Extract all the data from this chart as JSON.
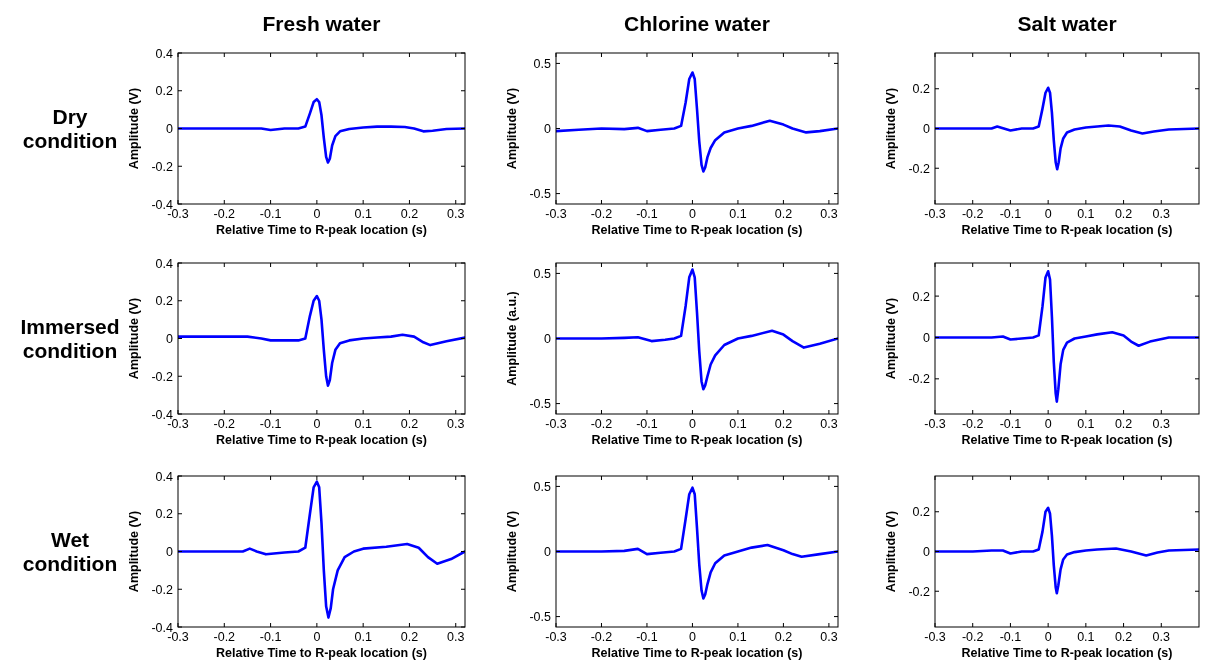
{
  "chart_data": [
    {
      "type": "line",
      "title": "Fresh water",
      "annotations": [
        "Dry condition"
      ],
      "xlabel": "Relative Time to R-peak location (s)",
      "ylabel": "Amplitude (V)",
      "xlim": [
        -0.3,
        0.32
      ],
      "xticks": [
        -0.3,
        -0.2,
        -0.1,
        0,
        0.1,
        0.2,
        0.3
      ],
      "ylim": [
        -0.4,
        0.4
      ],
      "yticks": [
        -0.4,
        -0.2,
        0,
        0.2,
        0.4
      ],
      "x": [
        -0.3,
        -0.25,
        -0.2,
        -0.15,
        -0.12,
        -0.1,
        -0.07,
        -0.04,
        -0.025,
        -0.015,
        -0.007,
        0,
        0.005,
        0.01,
        0.015,
        0.02,
        0.024,
        0.028,
        0.033,
        0.04,
        0.05,
        0.07,
        0.1,
        0.13,
        0.16,
        0.19,
        0.21,
        0.23,
        0.25,
        0.28,
        0.32
      ],
      "series": [
        {
          "color": "#0000ff",
          "values": [
            0,
            0,
            0,
            0,
            0,
            -0.008,
            0,
            0,
            0.01,
            0.08,
            0.14,
            0.155,
            0.14,
            0.07,
            -0.05,
            -0.15,
            -0.18,
            -0.16,
            -0.09,
            -0.04,
            -0.015,
            -0.003,
            0.005,
            0.01,
            0.01,
            0.008,
            0,
            -0.015,
            -0.012,
            -0.003,
            0
          ]
        }
      ]
    },
    {
      "type": "line",
      "title": "Chlorine water",
      "xlabel": "Relative Time to R-peak location (s)",
      "ylabel": "Amplitude (V)",
      "xlim": [
        -0.3,
        0.32
      ],
      "xticks": [
        -0.3,
        -0.2,
        -0.1,
        0,
        0.1,
        0.2,
        0.3
      ],
      "ylim": [
        -0.58,
        0.58
      ],
      "yticks": [
        -0.5,
        0,
        0.5
      ],
      "x": [
        -0.3,
        -0.25,
        -0.2,
        -0.15,
        -0.12,
        -0.1,
        -0.07,
        -0.04,
        -0.025,
        -0.015,
        -0.007,
        0,
        0.005,
        0.01,
        0.015,
        0.02,
        0.024,
        0.028,
        0.033,
        0.04,
        0.05,
        0.07,
        0.1,
        0.13,
        0.17,
        0.2,
        0.22,
        0.25,
        0.28,
        0.32
      ],
      "series": [
        {
          "color": "#0000ff",
          "values": [
            -0.02,
            -0.01,
            0,
            -0.005,
            0.005,
            -0.02,
            -0.01,
            0,
            0.02,
            0.2,
            0.38,
            0.43,
            0.38,
            0.15,
            -0.1,
            -0.28,
            -0.33,
            -0.3,
            -0.22,
            -0.15,
            -0.09,
            -0.03,
            0,
            0.02,
            0.06,
            0.03,
            0,
            -0.03,
            -0.02,
            0
          ]
        }
      ]
    },
    {
      "type": "line",
      "title": "Salt water",
      "xlabel": "Relative Time to R-peak location (s)",
      "ylabel": "Amplitude (V)",
      "xlim": [
        -0.3,
        0.4
      ],
      "xticks": [
        -0.3,
        -0.2,
        -0.1,
        0,
        0.1,
        0.2,
        0.3
      ],
      "ylim": [
        -0.38,
        0.38
      ],
      "yticks": [
        -0.2,
        0,
        0.2
      ],
      "x": [
        -0.3,
        -0.25,
        -0.2,
        -0.15,
        -0.135,
        -0.1,
        -0.07,
        -0.04,
        -0.025,
        -0.015,
        -0.007,
        0,
        0.005,
        0.01,
        0.015,
        0.02,
        0.024,
        0.028,
        0.033,
        0.04,
        0.05,
        0.07,
        0.1,
        0.13,
        0.16,
        0.19,
        0.22,
        0.25,
        0.28,
        0.32,
        0.4
      ],
      "series": [
        {
          "color": "#0000ff",
          "values": [
            0,
            0,
            0,
            0,
            0.01,
            -0.01,
            0,
            0,
            0.01,
            0.1,
            0.18,
            0.205,
            0.18,
            0.08,
            -0.06,
            -0.17,
            -0.205,
            -0.17,
            -0.1,
            -0.05,
            -0.02,
            -0.005,
            0.005,
            0.01,
            0.015,
            0.01,
            -0.01,
            -0.025,
            -0.015,
            -0.005,
            0
          ]
        }
      ]
    },
    {
      "type": "line",
      "annotations": [
        "Immersed condition"
      ],
      "xlabel": "Relative Time to R-peak location (s)",
      "ylabel": "Amplitude (V)",
      "xlim": [
        -0.3,
        0.32
      ],
      "xticks": [
        -0.3,
        -0.2,
        -0.1,
        0,
        0.1,
        0.2,
        0.3
      ],
      "ylim": [
        -0.4,
        0.4
      ],
      "yticks": [
        -0.4,
        -0.2,
        0,
        0.2,
        0.4
      ],
      "x": [
        -0.3,
        -0.25,
        -0.2,
        -0.15,
        -0.12,
        -0.1,
        -0.07,
        -0.04,
        -0.025,
        -0.015,
        -0.007,
        0,
        0.005,
        0.01,
        0.015,
        0.02,
        0.024,
        0.028,
        0.033,
        0.04,
        0.05,
        0.07,
        0.1,
        0.13,
        0.16,
        0.185,
        0.21,
        0.23,
        0.245,
        0.28,
        0.32
      ],
      "series": [
        {
          "color": "#0000ff",
          "values": [
            0.01,
            0.01,
            0.01,
            0.01,
            0,
            -0.01,
            -0.01,
            -0.01,
            0,
            0.12,
            0.2,
            0.225,
            0.2,
            0.1,
            -0.06,
            -0.2,
            -0.25,
            -0.22,
            -0.13,
            -0.06,
            -0.025,
            -0.01,
            0,
            0.005,
            0.01,
            0.02,
            0.01,
            -0.02,
            -0.035,
            -0.015,
            0.005
          ]
        }
      ]
    },
    {
      "type": "line",
      "xlabel": "Relative Time to R-peak location (s)",
      "ylabel": "Amplitude (a.u.)",
      "xlim": [
        -0.3,
        0.32
      ],
      "xticks": [
        -0.3,
        -0.2,
        -0.1,
        0,
        0.1,
        0.2,
        0.3
      ],
      "ylim": [
        -0.58,
        0.58
      ],
      "yticks": [
        -0.5,
        0,
        0.5
      ],
      "x": [
        -0.3,
        -0.25,
        -0.2,
        -0.15,
        -0.12,
        -0.09,
        -0.06,
        -0.04,
        -0.025,
        -0.015,
        -0.007,
        0,
        0.005,
        0.01,
        0.015,
        0.02,
        0.024,
        0.028,
        0.033,
        0.04,
        0.05,
        0.07,
        0.1,
        0.13,
        0.175,
        0.2,
        0.22,
        0.245,
        0.28,
        0.32
      ],
      "series": [
        {
          "color": "#0000ff",
          "values": [
            0,
            0,
            0,
            0.005,
            0.01,
            -0.02,
            -0.01,
            0,
            0.02,
            0.25,
            0.47,
            0.53,
            0.47,
            0.2,
            -0.1,
            -0.33,
            -0.39,
            -0.36,
            -0.29,
            -0.2,
            -0.13,
            -0.05,
            0,
            0.02,
            0.06,
            0.03,
            -0.02,
            -0.07,
            -0.04,
            0
          ]
        }
      ]
    },
    {
      "type": "line",
      "xlabel": "Relative Time to R-peak location (s)",
      "ylabel": "Amplitude (V)",
      "xlim": [
        -0.3,
        0.4
      ],
      "xticks": [
        -0.3,
        -0.2,
        -0.1,
        0,
        0.1,
        0.2,
        0.3
      ],
      "ylim": [
        -0.37,
        0.36
      ],
      "yticks": [
        -0.2,
        0,
        0.2
      ],
      "x": [
        -0.3,
        -0.25,
        -0.2,
        -0.15,
        -0.12,
        -0.1,
        -0.07,
        -0.04,
        -0.025,
        -0.015,
        -0.007,
        0,
        0.005,
        0.01,
        0.015,
        0.02,
        0.023,
        0.027,
        0.033,
        0.04,
        0.05,
        0.07,
        0.1,
        0.13,
        0.17,
        0.2,
        0.22,
        0.24,
        0.27,
        0.32,
        0.4
      ],
      "series": [
        {
          "color": "#0000ff",
          "values": [
            0,
            0,
            0,
            0,
            0.005,
            -0.01,
            -0.005,
            0,
            0.01,
            0.15,
            0.29,
            0.32,
            0.28,
            0.1,
            -0.12,
            -0.27,
            -0.31,
            -0.25,
            -0.13,
            -0.06,
            -0.025,
            -0.005,
            0.005,
            0.015,
            0.025,
            0.01,
            -0.02,
            -0.04,
            -0.02,
            0,
            0
          ]
        }
      ]
    },
    {
      "type": "line",
      "annotations": [
        "Wet condition"
      ],
      "xlabel": "Relative Time to R-peak location (s)",
      "ylabel": "Amplitude (V)",
      "xlim": [
        -0.3,
        0.32
      ],
      "xticks": [
        -0.3,
        -0.2,
        -0.1,
        0,
        0.1,
        0.2,
        0.3
      ],
      "ylim": [
        -0.4,
        0.4
      ],
      "yticks": [
        -0.4,
        -0.2,
        0,
        0.2,
        0.4
      ],
      "x": [
        -0.3,
        -0.25,
        -0.2,
        -0.16,
        -0.145,
        -0.13,
        -0.11,
        -0.07,
        -0.04,
        -0.025,
        -0.015,
        -0.007,
        0,
        0.005,
        0.01,
        0.015,
        0.02,
        0.025,
        0.03,
        0.035,
        0.045,
        0.06,
        0.08,
        0.1,
        0.15,
        0.195,
        0.22,
        0.24,
        0.26,
        0.29,
        0.32
      ],
      "series": [
        {
          "color": "#0000ff",
          "values": [
            0,
            0,
            0,
            0,
            0.015,
            0,
            -0.015,
            -0.005,
            0,
            0.02,
            0.2,
            0.34,
            0.37,
            0.34,
            0.15,
            -0.1,
            -0.29,
            -0.35,
            -0.3,
            -0.2,
            -0.1,
            -0.03,
            0,
            0.015,
            0.025,
            0.04,
            0.02,
            -0.03,
            -0.065,
            -0.04,
            0
          ]
        }
      ]
    },
    {
      "type": "line",
      "xlabel": "Relative Time to R-peak location (s)",
      "ylabel": "Amplitude (V)",
      "xlim": [
        -0.3,
        0.32
      ],
      "xticks": [
        -0.3,
        -0.2,
        -0.1,
        0,
        0.1,
        0.2,
        0.3
      ],
      "ylim": [
        -0.58,
        0.58
      ],
      "yticks": [
        -0.5,
        0,
        0.5
      ],
      "x": [
        -0.3,
        -0.25,
        -0.2,
        -0.15,
        -0.12,
        -0.1,
        -0.07,
        -0.04,
        -0.025,
        -0.015,
        -0.007,
        0,
        0.005,
        0.01,
        0.015,
        0.02,
        0.024,
        0.028,
        0.033,
        0.04,
        0.05,
        0.07,
        0.1,
        0.13,
        0.165,
        0.2,
        0.22,
        0.24,
        0.28,
        0.32
      ],
      "series": [
        {
          "color": "#0000ff",
          "values": [
            0,
            0,
            0,
            0.005,
            0.02,
            -0.02,
            -0.01,
            0,
            0.02,
            0.25,
            0.44,
            0.49,
            0.44,
            0.18,
            -0.1,
            -0.3,
            -0.36,
            -0.33,
            -0.25,
            -0.16,
            -0.09,
            -0.03,
            0,
            0.03,
            0.05,
            0.01,
            -0.02,
            -0.04,
            -0.02,
            0
          ]
        }
      ]
    },
    {
      "type": "line",
      "xlabel": "Relative Time to R-peak location (s)",
      "ylabel": "Amplitude (V)",
      "xlim": [
        -0.3,
        0.4
      ],
      "xticks": [
        -0.3,
        -0.2,
        -0.1,
        0,
        0.1,
        0.2,
        0.3
      ],
      "ylim": [
        -0.38,
        0.38
      ],
      "yticks": [
        -0.2,
        0,
        0.2
      ],
      "x": [
        -0.3,
        -0.25,
        -0.2,
        -0.15,
        -0.12,
        -0.1,
        -0.07,
        -0.04,
        -0.025,
        -0.015,
        -0.007,
        0,
        0.005,
        0.01,
        0.015,
        0.02,
        0.023,
        0.027,
        0.033,
        0.04,
        0.05,
        0.07,
        0.1,
        0.13,
        0.18,
        0.22,
        0.26,
        0.29,
        0.32,
        0.4
      ],
      "series": [
        {
          "color": "#0000ff",
          "values": [
            0,
            0,
            0,
            0.005,
            0.005,
            -0.01,
            0,
            0,
            0.01,
            0.1,
            0.2,
            0.22,
            0.19,
            0.08,
            -0.07,
            -0.18,
            -0.21,
            -0.17,
            -0.09,
            -0.04,
            -0.015,
            -0.003,
            0.005,
            0.01,
            0.015,
            0,
            -0.02,
            -0.005,
            0.005,
            0.01
          ]
        }
      ]
    }
  ]
}
